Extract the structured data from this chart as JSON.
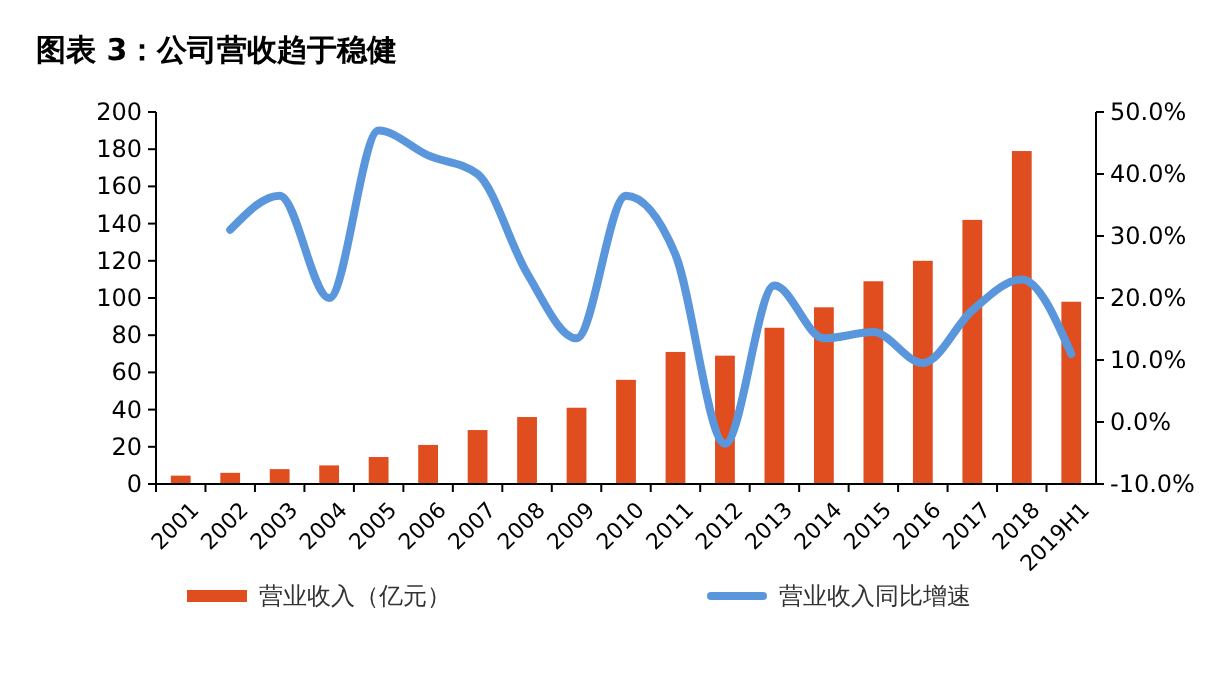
{
  "chart_data": {
    "type": "bar",
    "title": "图表 3：公司营收趋于稳健",
    "categories": [
      "2001",
      "2002",
      "2003",
      "2004",
      "2005",
      "2006",
      "2007",
      "2008",
      "2009",
      "2010",
      "2011",
      "2012",
      "2013",
      "2014",
      "2015",
      "2016",
      "2017",
      "2018",
      "2019H1"
    ],
    "series": [
      {
        "name": "营业收入（亿元）",
        "color": "#e04e1f",
        "values": [
          4.5,
          6,
          8,
          10,
          14.5,
          21,
          29,
          36,
          41,
          56,
          71,
          69,
          84,
          95,
          109,
          120,
          142,
          179,
          98
        ]
      },
      {
        "name": "营业收入同比增速",
        "type": "line",
        "axis": "y2",
        "color": "#5a96db",
        "values": [
          null,
          31,
          36.5,
          20,
          47,
          43,
          40,
          24,
          13.5,
          36.5,
          27,
          -3.5,
          22,
          13.5,
          14.5,
          9.5,
          18,
          23,
          11
        ]
      }
    ],
    "ylim": [
      0,
      200
    ],
    "yticks": [
      0,
      20,
      40,
      60,
      80,
      100,
      120,
      140,
      160,
      180,
      200
    ],
    "y2lim": [
      -10,
      50
    ],
    "y2ticks": [
      {
        "value": -10,
        "label": "-10.0%"
      },
      {
        "value": 0,
        "label": "0.0%"
      },
      {
        "value": 10,
        "label": "10.0%"
      },
      {
        "value": 20,
        "label": "20.0%"
      },
      {
        "value": 30,
        "label": "30.0%"
      },
      {
        "value": 40,
        "label": "40.0%"
      },
      {
        "value": 50,
        "label": "50.0%"
      }
    ],
    "legend": "bottom",
    "grid": false
  }
}
